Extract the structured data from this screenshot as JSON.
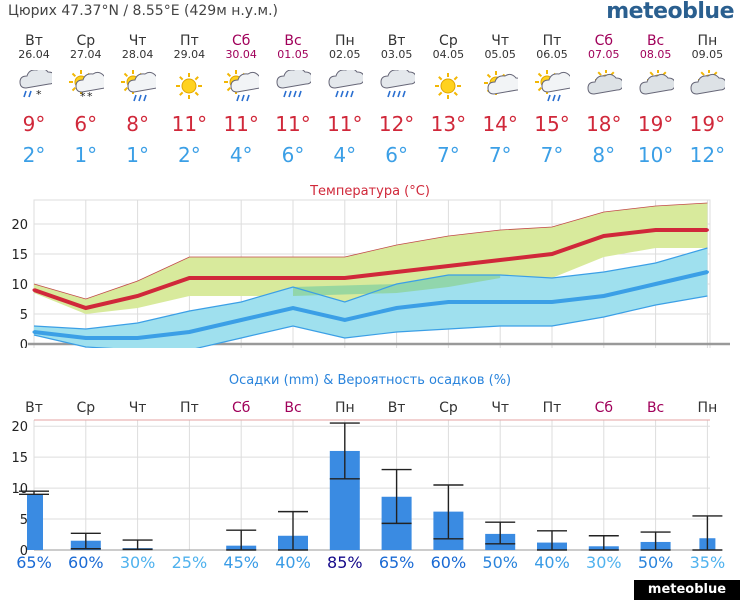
{
  "header": {
    "location": "Цюрих  47.37°N / 8.55°E (429м н.у.м.)",
    "logo": "meteoblue"
  },
  "days": [
    {
      "name": "Вт",
      "date": "26.04",
      "tmax": "9°",
      "tmin": "2°",
      "weekend": false,
      "icon": "snow-shower-icon"
    },
    {
      "name": "Ср",
      "date": "27.04",
      "tmax": "6°",
      "tmin": "1°",
      "weekend": false,
      "icon": "sun-snow-icon"
    },
    {
      "name": "Чт",
      "date": "28.04",
      "tmax": "8°",
      "tmin": "1°",
      "weekend": false,
      "icon": "sun-rain-icon"
    },
    {
      "name": "Пт",
      "date": "29.04",
      "tmax": "11°",
      "tmin": "2°",
      "weekend": false,
      "icon": "sun-icon"
    },
    {
      "name": "Сб",
      "date": "30.04",
      "tmax": "11°",
      "tmin": "4°",
      "weekend": true,
      "icon": "sun-rain-icon"
    },
    {
      "name": "Вс",
      "date": "01.05",
      "tmax": "11°",
      "tmin": "6°",
      "weekend": true,
      "icon": "rain-icon"
    },
    {
      "name": "Пн",
      "date": "02.05",
      "tmax": "11°",
      "tmin": "4°",
      "weekend": false,
      "icon": "rain-icon"
    },
    {
      "name": "Вт",
      "date": "03.05",
      "tmax": "12°",
      "tmin": "6°",
      "weekend": false,
      "icon": "rain-icon"
    },
    {
      "name": "Ср",
      "date": "04.05",
      "tmax": "13°",
      "tmin": "7°",
      "weekend": false,
      "icon": "sun-icon"
    },
    {
      "name": "Чт",
      "date": "05.05",
      "tmax": "14°",
      "tmin": "7°",
      "weekend": false,
      "icon": "partly-cloudy-icon"
    },
    {
      "name": "Пт",
      "date": "06.05",
      "tmax": "15°",
      "tmin": "7°",
      "weekend": false,
      "icon": "sun-rain-icon"
    },
    {
      "name": "Сб",
      "date": "07.05",
      "tmax": "18°",
      "tmin": "8°",
      "weekend": true,
      "icon": "cloudy-sun-icon"
    },
    {
      "name": "Вс",
      "date": "08.05",
      "tmax": "19°",
      "tmin": "10°",
      "weekend": true,
      "icon": "cloudy-sun-icon"
    },
    {
      "name": "Пн",
      "date": "09.05",
      "tmax": "19°",
      "tmin": "12°",
      "weekend": false,
      "icon": "cloudy-sun-icon"
    }
  ],
  "colors": {
    "max_line": "#d0283a",
    "min_line": "#3b9fe6",
    "max_band": "#d8ea9c",
    "min_band": "#9fe0ee",
    "overlap": "#8ed4a0",
    "bar": "#3a8be2",
    "weekend": "#a0005a",
    "grid": "#cccccc"
  },
  "chart_data": [
    {
      "type": "line",
      "title": "Температура (°C)",
      "categories": [
        "Вт",
        "Ср",
        "Чт",
        "Пт",
        "Сб",
        "Вс",
        "Пн",
        "Вт",
        "Ср",
        "Чт",
        "Пт",
        "Сб",
        "Вс",
        "Пн"
      ],
      "ylim": [
        -2,
        24
      ],
      "yticks": [
        0,
        5,
        10,
        15,
        20
      ],
      "series": [
        {
          "name": "max",
          "values": [
            9,
            6,
            8,
            11,
            11,
            11,
            11,
            12,
            13,
            14,
            15,
            18,
            19,
            19
          ]
        },
        {
          "name": "max_upper",
          "values": [
            10,
            7.5,
            10.5,
            14.5,
            14.5,
            14.5,
            14.5,
            16.5,
            18,
            19,
            19.5,
            22,
            23,
            23.5
          ]
        },
        {
          "name": "max_lower",
          "values": [
            8.5,
            5,
            6,
            8,
            8,
            8,
            7,
            8.5,
            9.5,
            11,
            11,
            14.5,
            16,
            16
          ]
        },
        {
          "name": "min",
          "values": [
            2,
            1,
            1,
            2,
            4,
            6,
            4,
            6,
            7,
            7,
            7,
            8,
            10,
            12
          ]
        },
        {
          "name": "min_upper",
          "values": [
            3,
            2.5,
            3.5,
            5.5,
            7,
            9.5,
            7,
            10,
            11.5,
            11.5,
            11,
            12,
            13.5,
            16
          ]
        },
        {
          "name": "min_lower",
          "values": [
            1.5,
            -0.5,
            -1,
            -1,
            1,
            3,
            1,
            2,
            2.5,
            3,
            3,
            4.5,
            6.5,
            8
          ]
        }
      ]
    },
    {
      "type": "bar",
      "title": "Осадки (mm) & Вероятность осадков (%)",
      "categories": [
        "Вт",
        "Ср",
        "Чт",
        "Пт",
        "Сб",
        "Вс",
        "Пн",
        "Вт",
        "Ср",
        "Чт",
        "Пт",
        "Сб",
        "Вс",
        "Пн"
      ],
      "ylim": [
        0,
        21
      ],
      "yticks": [
        0,
        5,
        10,
        15,
        20
      ],
      "values": [
        9,
        1.5,
        0.3,
        0,
        0.7,
        2.3,
        16,
        8.6,
        6.2,
        2.6,
        1.2,
        0.6,
        1.3,
        1.9
      ],
      "err_low": [
        9,
        0.2,
        0.1,
        0,
        0,
        0,
        11.5,
        4.3,
        1.8,
        1,
        0,
        0,
        0,
        0
      ],
      "err_high": [
        9.5,
        2.7,
        1.6,
        0,
        3.2,
        6.2,
        20.5,
        13,
        10.5,
        4.5,
        3.1,
        2.3,
        2.9,
        5.5
      ],
      "probability": [
        "65%",
        "60%",
        "30%",
        "25%",
        "45%",
        "40%",
        "85%",
        "65%",
        "60%",
        "50%",
        "40%",
        "30%",
        "50%",
        "35%"
      ],
      "probability_colors": [
        "#1a6ad4",
        "#1a6ad4",
        "#4fb2ee",
        "#4fb2ee",
        "#3a9ce6",
        "#3a9ce6",
        "#150a8a",
        "#1a6ad4",
        "#1a6ad4",
        "#2a84dc",
        "#3a9ce6",
        "#4fb2ee",
        "#2a84dc",
        "#4fb2ee"
      ]
    }
  ],
  "footer": {
    "brand": "meteoblue"
  }
}
